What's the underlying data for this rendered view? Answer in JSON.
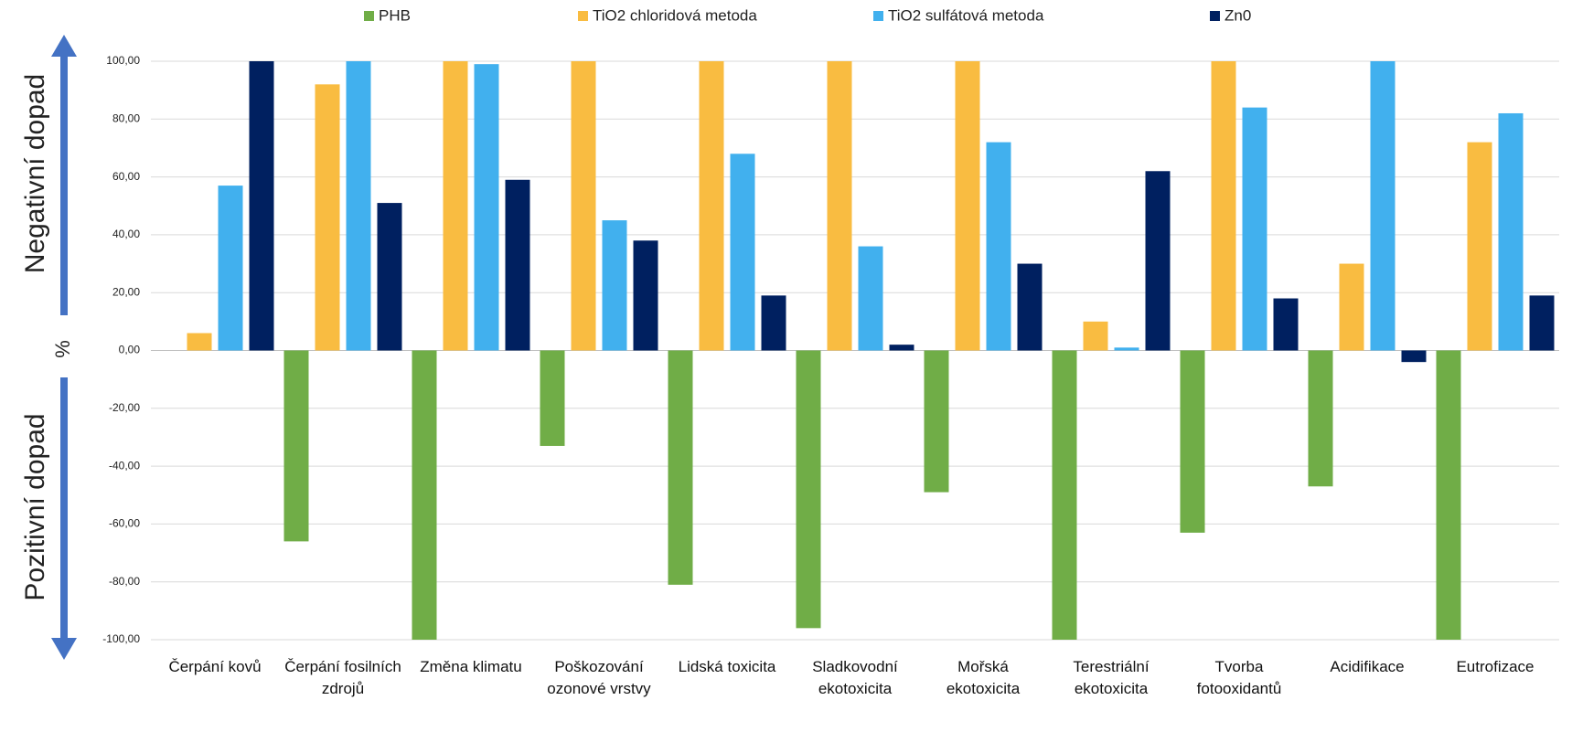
{
  "chart_data": {
    "type": "bar",
    "y_label_top": "Negativní dopad",
    "y_label_bottom": "Pozitivní dopad",
    "y_unit": "%",
    "categories": [
      "Čerpání kovů",
      "Čerpání fosilních zdrojů",
      "Změna klimatu",
      "Poškozování ozonové vrstvy",
      "Lidská toxicita",
      "Sladkovodní ekotoxicita",
      "Mořská ekotoxicita",
      "Terestriální ekotoxicita",
      "Tvorba fotooxidantů",
      "Acidifikace",
      "Eutrofizace"
    ],
    "series": [
      {
        "name": "PHB",
        "color": "#70ad47",
        "values": [
          0,
          -66,
          -100,
          -33,
          -81,
          -96,
          -49,
          -100,
          -63,
          -47,
          -100
        ]
      },
      {
        "name": "TiO2 chloridová metoda",
        "color": "#f9bc41",
        "values": [
          6,
          92,
          100,
          100,
          100,
          100,
          100,
          10,
          100,
          30,
          72
        ]
      },
      {
        "name": "TiO2 sulfátová metoda",
        "color": "#41b0ee",
        "values": [
          57,
          100,
          99,
          45,
          68,
          36,
          72,
          1,
          84,
          100,
          82
        ]
      },
      {
        "name": "Zn0",
        "color": "#002060",
        "values": [
          100,
          51,
          59,
          38,
          19,
          2,
          30,
          62,
          18,
          -4,
          19
        ]
      }
    ],
    "ylim": [
      -100,
      100
    ],
    "yticks": [
      {
        "value": -100,
        "label": "-100,00"
      },
      {
        "value": -80,
        "label": "-80,00"
      },
      {
        "value": -60,
        "label": "-60,00"
      },
      {
        "value": -40,
        "label": "-40,00"
      },
      {
        "value": -20,
        "label": "-20,00"
      },
      {
        "value": 0,
        "label": "0,00"
      },
      {
        "value": 20,
        "label": "20,00"
      },
      {
        "value": 40,
        "label": "40,00"
      },
      {
        "value": 60,
        "label": "60,00"
      },
      {
        "value": 80,
        "label": "80,00"
      },
      {
        "value": 100,
        "label": "100,00"
      }
    ],
    "grid": true
  }
}
